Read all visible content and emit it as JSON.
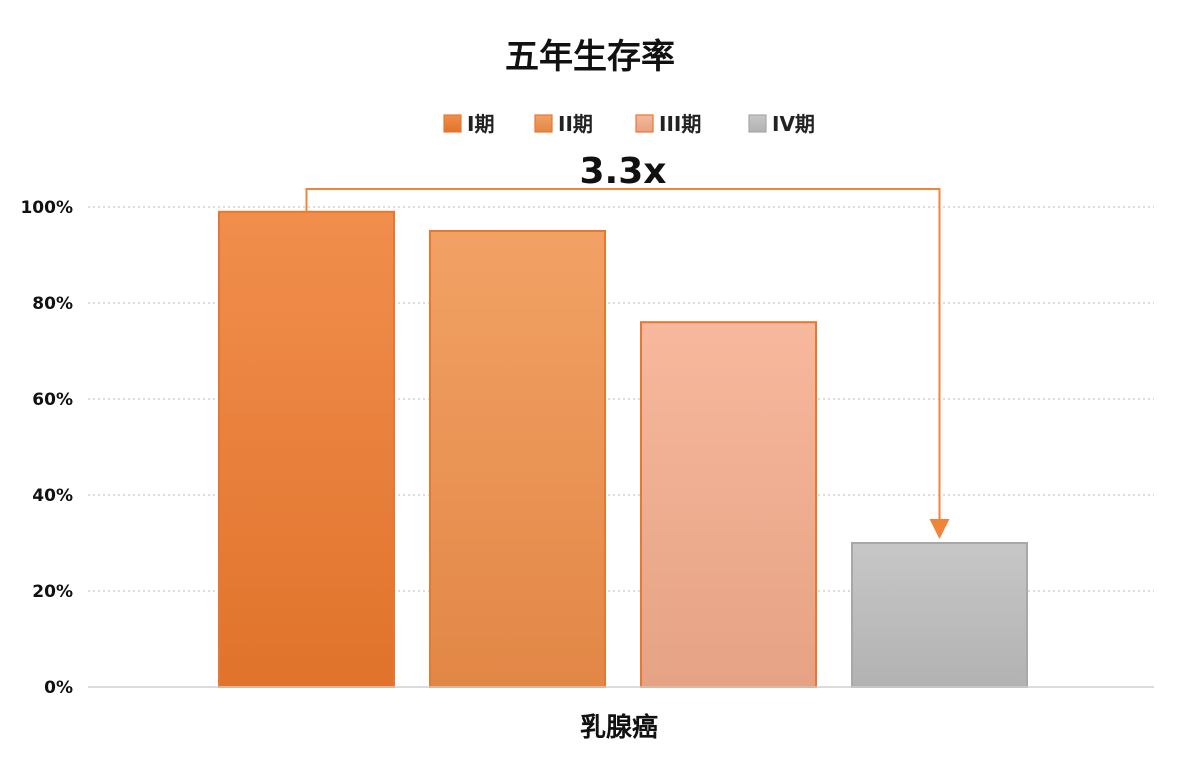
{
  "chart_data": {
    "type": "bar",
    "title": "五年生存率",
    "categories": [
      "乳腺癌"
    ],
    "series": [
      {
        "name": "I期",
        "values": [
          99
        ],
        "color": "#EE7A2E"
      },
      {
        "name": "II期",
        "values": [
          95
        ],
        "color": "#F0904A"
      },
      {
        "name": "III期",
        "values": [
          76
        ],
        "color": "#F5AC8C"
      },
      {
        "name": "IV期",
        "values": [
          30
        ],
        "color": "#BDBDBD"
      }
    ],
    "ylim": [
      0,
      100
    ],
    "yticks": [
      0,
      20,
      40,
      60,
      80,
      100
    ],
    "ytick_labels": [
      "0%",
      "20%",
      "40%",
      "60%",
      "80%",
      "100%"
    ],
    "grid": true,
    "legend_position": "top-center",
    "annotation": {
      "text": "3.3x",
      "from_series": "I期",
      "to_series": "IV期"
    }
  }
}
